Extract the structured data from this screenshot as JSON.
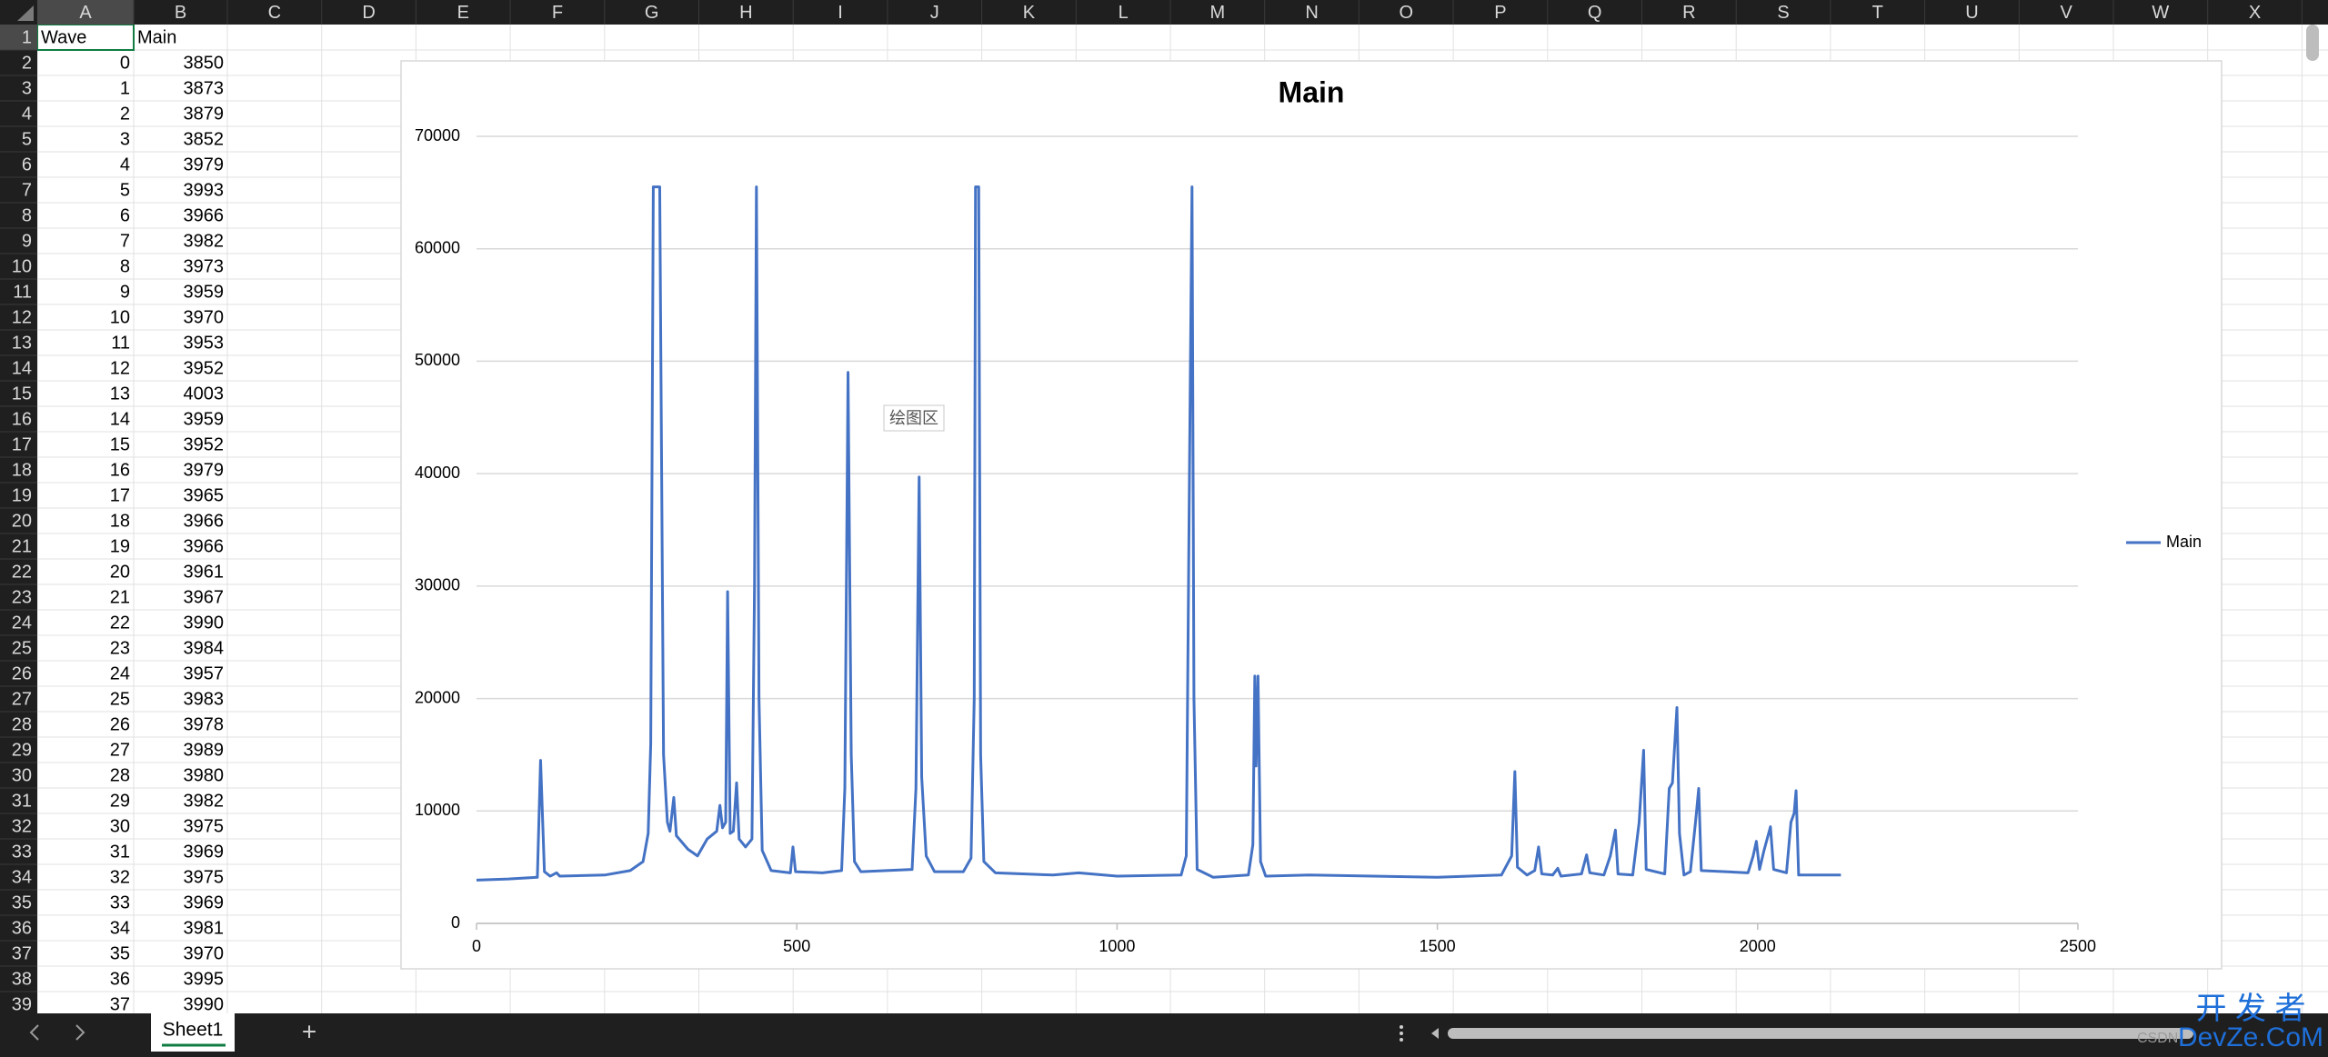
{
  "spreadsheet": {
    "columns": [
      "A",
      "B",
      "C",
      "D",
      "E",
      "F",
      "G",
      "H",
      "I",
      "J",
      "K",
      "L",
      "M",
      "N",
      "O",
      "P",
      "Q",
      "R",
      "S",
      "T",
      "U",
      "V",
      "W",
      "X"
    ],
    "row_numbers": [
      1,
      2,
      3,
      4,
      5,
      6,
      7,
      8,
      9,
      10,
      11,
      12,
      13,
      14,
      15,
      16,
      17,
      18,
      19,
      20,
      21,
      22,
      23,
      24,
      25,
      26,
      27,
      28,
      29,
      30,
      31,
      32,
      33,
      34,
      35,
      36,
      37,
      38,
      39
    ],
    "header": [
      "Wave",
      "Main"
    ],
    "rows": [
      [
        0,
        3850
      ],
      [
        1,
        3873
      ],
      [
        2,
        3879
      ],
      [
        3,
        3852
      ],
      [
        4,
        3979
      ],
      [
        5,
        3993
      ],
      [
        6,
        3966
      ],
      [
        7,
        3982
      ],
      [
        8,
        3973
      ],
      [
        9,
        3959
      ],
      [
        10,
        3970
      ],
      [
        11,
        3953
      ],
      [
        12,
        3952
      ],
      [
        13,
        4003
      ],
      [
        14,
        3959
      ],
      [
        15,
        3952
      ],
      [
        16,
        3979
      ],
      [
        17,
        3965
      ],
      [
        18,
        3966
      ],
      [
        19,
        3966
      ],
      [
        20,
        3961
      ],
      [
        21,
        3967
      ],
      [
        22,
        3990
      ],
      [
        23,
        3984
      ],
      [
        24,
        3957
      ],
      [
        25,
        3983
      ],
      [
        26,
        3978
      ],
      [
        27,
        3989
      ],
      [
        28,
        3980
      ],
      [
        29,
        3982
      ],
      [
        30,
        3975
      ],
      [
        31,
        3969
      ],
      [
        32,
        3975
      ],
      [
        33,
        3969
      ],
      [
        34,
        3981
      ],
      [
        35,
        3970
      ],
      [
        36,
        3995
      ],
      [
        37,
        3990
      ]
    ]
  },
  "chart_data": {
    "type": "line",
    "title": "Main",
    "x": [
      0,
      50,
      95,
      100,
      106,
      115,
      125,
      130,
      200,
      240,
      260,
      268,
      272,
      276,
      286,
      292,
      298,
      302,
      308,
      312,
      330,
      345,
      360,
      375,
      380,
      384,
      389,
      392,
      396,
      401,
      406,
      410,
      420,
      430,
      434,
      437,
      441,
      446,
      460,
      490,
      494,
      498,
      540,
      570,
      575,
      580,
      585,
      590,
      600,
      680,
      686,
      691,
      695,
      702,
      715,
      760,
      772,
      777,
      779,
      784,
      787,
      792,
      810,
      900,
      940,
      1000,
      1100,
      1108,
      1113,
      1117,
      1120,
      1125,
      1150,
      1205,
      1212,
      1215,
      1217,
      1220,
      1224,
      1232,
      1300,
      1400,
      1500,
      1600,
      1616,
      1621,
      1625,
      1640,
      1652,
      1658,
      1663,
      1680,
      1688,
      1693,
      1725,
      1733,
      1738,
      1760,
      1770,
      1778,
      1782,
      1805,
      1815,
      1822,
      1826,
      1855,
      1862,
      1867,
      1874,
      1878,
      1885,
      1895,
      1903,
      1908,
      1912,
      1985,
      1993,
      1998,
      2003,
      2010,
      2020,
      2025,
      2045,
      2052,
      2057,
      2060,
      2064,
      2130
    ],
    "series": [
      {
        "name": "Main",
        "color": "#4472c4",
        "values": [
          3850,
          3950,
          4100,
          14500,
          4600,
          4200,
          4500,
          4200,
          4300,
          4700,
          5500,
          8000,
          16000,
          65500,
          65500,
          15000,
          9000,
          8200,
          11200,
          7800,
          6600,
          6000,
          7500,
          8200,
          10500,
          8500,
          9000,
          29500,
          8000,
          8200,
          12500,
          7500,
          6800,
          7500,
          30000,
          65500,
          20000,
          6500,
          4700,
          4500,
          6800,
          4600,
          4500,
          4700,
          12000,
          49000,
          15000,
          5500,
          4600,
          4800,
          12000,
          39700,
          13000,
          6000,
          4600,
          4600,
          5800,
          20000,
          65500,
          65500,
          15000,
          5500,
          4500,
          4300,
          4500,
          4200,
          4300,
          6000,
          40000,
          65500,
          20000,
          4800,
          4100,
          4300,
          7000,
          22000,
          14000,
          22000,
          5500,
          4200,
          4300,
          4200,
          4100,
          4300,
          6000,
          13500,
          5000,
          4300,
          4700,
          6800,
          4400,
          4300,
          4900,
          4200,
          4400,
          6100,
          4500,
          4300,
          6000,
          8300,
          4400,
          4300,
          9000,
          15400,
          4800,
          4400,
          12000,
          12500,
          19200,
          8000,
          4300,
          4600,
          9000,
          12000,
          4700,
          4500,
          6000,
          7300,
          4800,
          6500,
          8600,
          4800,
          4500,
          9000,
          9800,
          11800,
          4300,
          4300
        ]
      }
    ],
    "xlim": [
      0,
      2500
    ],
    "xticks": [
      0,
      500,
      1000,
      1500,
      2000,
      2500
    ],
    "ylim": [
      0,
      70000
    ],
    "yticks": [
      0,
      10000,
      20000,
      30000,
      40000,
      50000,
      60000,
      70000
    ],
    "grid": true,
    "legend": "right"
  },
  "plot_tooltip": "绘图区",
  "sheet_tabs": [
    "Sheet1"
  ],
  "new_sheet_button": "+",
  "watermark": {
    "top": "开 发 者",
    "bottom": "DevZe.CoM",
    "small": "CSDN"
  }
}
